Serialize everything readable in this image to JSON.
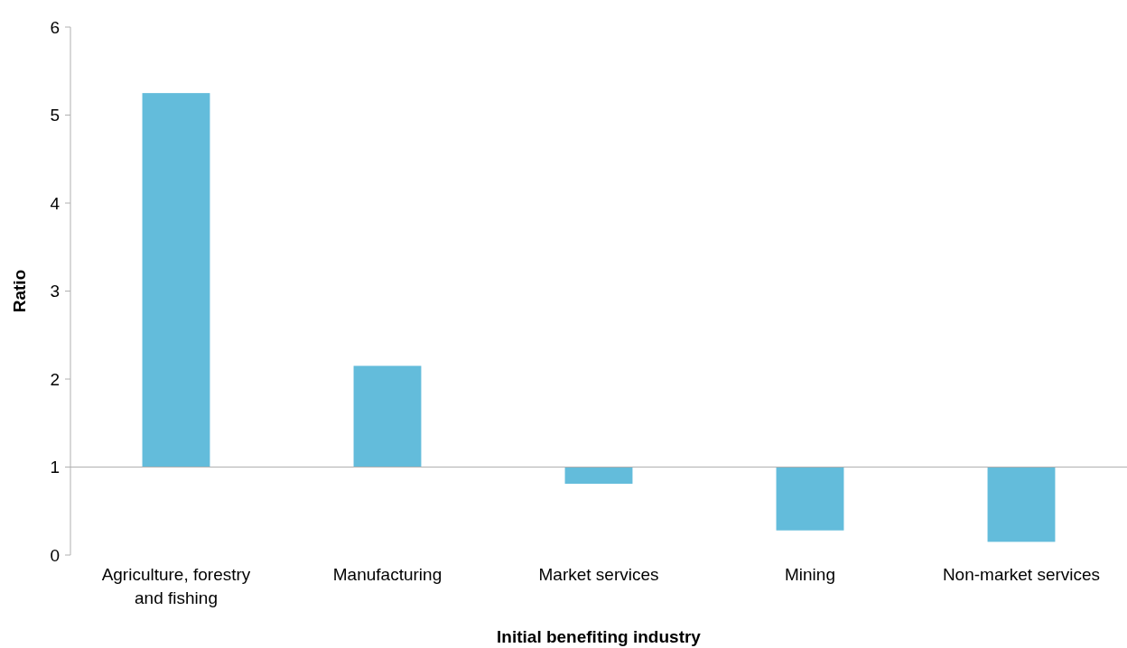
{
  "chart_data": {
    "type": "bar",
    "xlabel": "Initial benefiting industry",
    "ylabel": "Ratio",
    "categories": [
      "Agriculture, forestry and fishing",
      "Manufacturing",
      "Market services",
      "Mining",
      "Non-market services"
    ],
    "base": [
      1,
      1,
      1,
      1,
      1
    ],
    "values": [
      4.25,
      1.15,
      -0.19,
      -0.72,
      -0.85
    ],
    "color": "#63bcdb",
    "ylim": [
      0,
      6
    ],
    "yticks": [
      0,
      1,
      2,
      3,
      4,
      5,
      6
    ]
  }
}
